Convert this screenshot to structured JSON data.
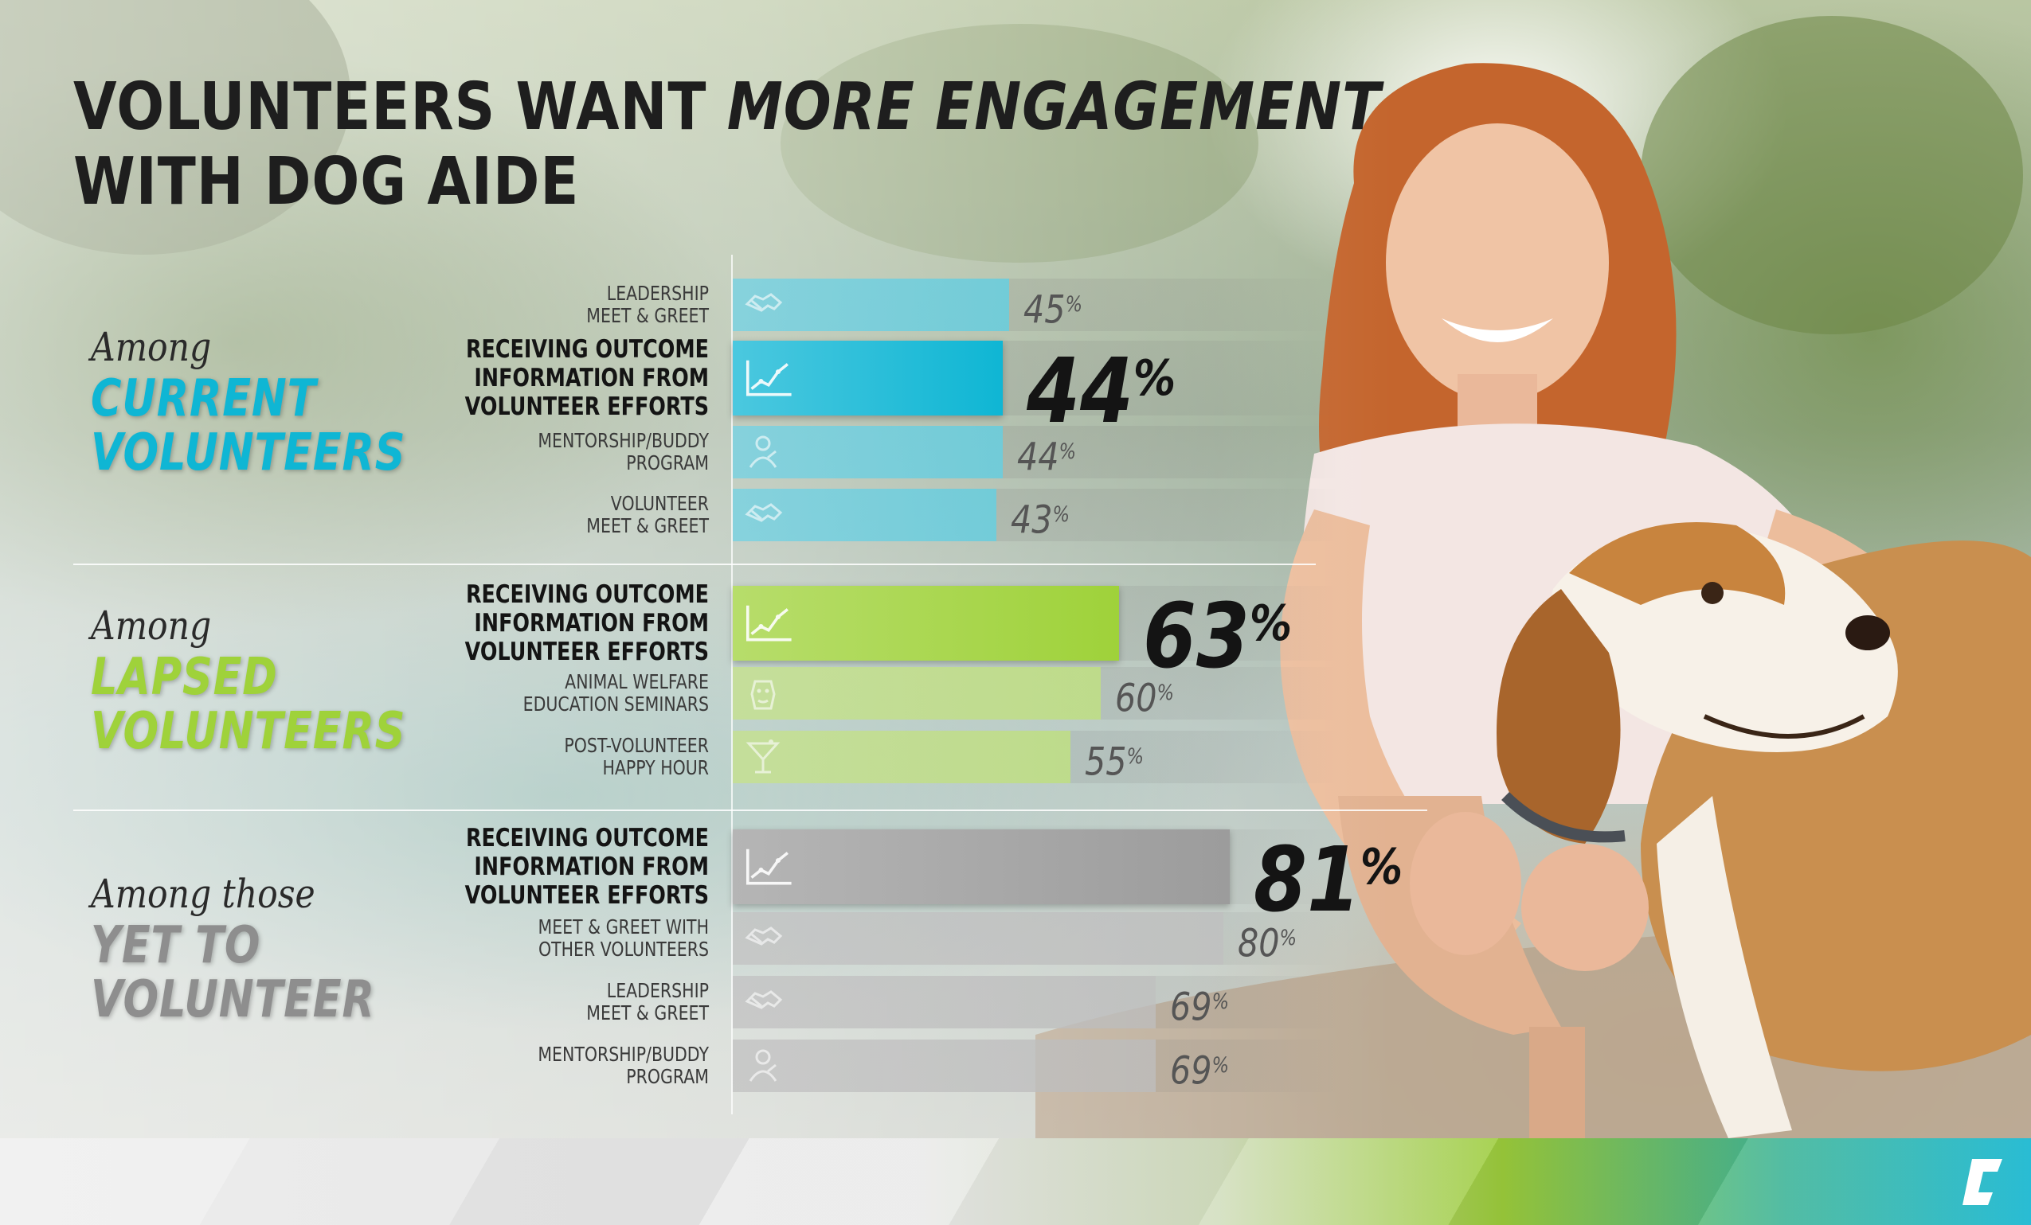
{
  "title": {
    "part1": "VOLUNTEERS WANT ",
    "emphasis": "MORE ENGAGEMENT",
    "line2": "WITH DOG AIDE"
  },
  "colors": {
    "current": "#0fb6d4",
    "lapsed": "#9fd23a",
    "yet": "#9c9c9c"
  },
  "groups": [
    {
      "prefix": "Among",
      "name_line1": "CURRENT",
      "name_line2": "VOLUNTEERS"
    },
    {
      "prefix": "Among",
      "name_line1": "LAPSED",
      "name_line2": "VOLUNTEERS"
    },
    {
      "prefix": "Among those",
      "name_line1": "YET TO",
      "name_line2": "VOLUNTEER"
    }
  ],
  "chart_data": {
    "type": "bar",
    "orientation": "horizontal",
    "xlim": [
      0,
      100
    ],
    "unit": "%",
    "grid": false,
    "groups": [
      {
        "group": "CURRENT VOLUNTEERS",
        "rows": [
          {
            "label": "LEADERSHIP\nMEET & GREET",
            "value": 45,
            "icon": "handshake-icon",
            "highlight": false
          },
          {
            "label": "RECEIVING OUTCOME\nINFORMATION FROM\nVOLUNTEER EFFORTS",
            "value": 44,
            "icon": "line-chart-icon",
            "highlight": true
          },
          {
            "label": "MENTORSHIP/BUDDY\nPROGRAM",
            "value": 44,
            "icon": "mentor-icon",
            "highlight": false
          },
          {
            "label": "VOLUNTEER\nMEET & GREET",
            "value": 43,
            "icon": "handshake-icon",
            "highlight": false
          }
        ]
      },
      {
        "group": "LAPSED VOLUNTEERS",
        "rows": [
          {
            "label": "RECEIVING OUTCOME\nINFORMATION FROM\nVOLUNTEER EFFORTS",
            "value": 63,
            "icon": "line-chart-icon",
            "highlight": true
          },
          {
            "label": "ANIMAL WELFARE\nEDUCATION SEMINARS",
            "value": 60,
            "icon": "dog-icon",
            "highlight": false
          },
          {
            "label": "POST-VOLUNTEER\nHAPPY HOUR",
            "value": 55,
            "icon": "cocktail-icon",
            "highlight": false
          }
        ]
      },
      {
        "group": "YET TO VOLUNTEER",
        "rows": [
          {
            "label": "RECEIVING OUTCOME\nINFORMATION FROM\nVOLUNTEER EFFORTS",
            "value": 81,
            "icon": "line-chart-icon",
            "highlight": true
          },
          {
            "label": "MEET & GREET WITH\nOTHER VOLUNTEERS",
            "value": 80,
            "icon": "handshake-icon",
            "highlight": false
          },
          {
            "label": "LEADERSHIP\nMEET & GREET",
            "value": 69,
            "icon": "handshake-icon",
            "highlight": false
          },
          {
            "label": "MENTORSHIP/BUDDY\nPROGRAM",
            "value": 69,
            "icon": "mentor-icon",
            "highlight": false
          }
        ]
      }
    ]
  }
}
